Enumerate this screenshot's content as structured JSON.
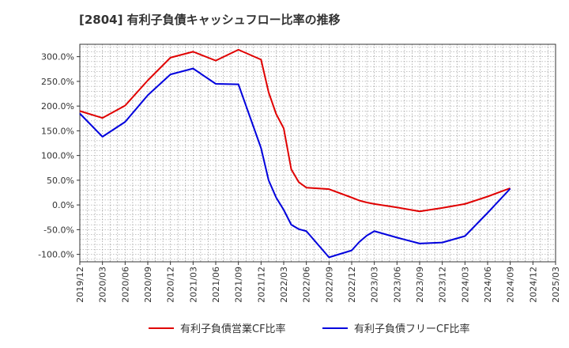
{
  "chart_data": {
    "type": "line",
    "title": "[2804]  有利子負債キャッシュフロー比率の推移",
    "xlabel": "",
    "ylabel": "",
    "x_ticks": [
      "2019/12",
      "2020/03",
      "2020/06",
      "2020/09",
      "2020/12",
      "2021/03",
      "2021/06",
      "2021/09",
      "2021/12",
      "2022/03",
      "2022/06",
      "2022/09",
      "2022/12",
      "2023/03",
      "2023/06",
      "2023/09",
      "2023/12",
      "2024/03",
      "2024/06",
      "2024/09",
      "2024/12",
      "2025/03"
    ],
    "y_ticks": [
      "300.0%",
      "250.0%",
      "200.0%",
      "150.0%",
      "100.0%",
      "50.0%",
      "0.0%",
      "-50.0%",
      "-100.0%"
    ],
    "y_tick_values": [
      300,
      250,
      200,
      150,
      100,
      50,
      0,
      -50,
      -100
    ],
    "ylim": [
      -115,
      325
    ],
    "grid": true,
    "legend_position": "bottom",
    "series": [
      {
        "name": "有利子負債営業CF比率",
        "color": "#e00000",
        "points": [
          [
            "2019/12",
            190
          ],
          [
            "2020/03",
            176
          ],
          [
            "2020/06",
            201
          ],
          [
            "2020/09",
            252
          ],
          [
            "2020/12",
            298
          ],
          [
            "2021/03",
            310
          ],
          [
            "2021/06",
            292
          ],
          [
            "2021/09",
            314
          ],
          [
            "2021/12",
            294
          ],
          [
            "2022/01",
            228
          ],
          [
            "2022/02",
            184
          ],
          [
            "2022/03",
            155
          ],
          [
            "2022/04",
            72
          ],
          [
            "2022/05",
            46
          ],
          [
            "2022/06",
            35
          ],
          [
            "2022/09",
            32
          ],
          [
            "2022/12",
            15
          ],
          [
            "2023/01",
            9
          ],
          [
            "2023/02",
            5
          ],
          [
            "2023/03",
            2
          ],
          [
            "2023/06",
            -5
          ],
          [
            "2023/09",
            -13
          ],
          [
            "2023/12",
            -6
          ],
          [
            "2024/03",
            2
          ],
          [
            "2024/06",
            17
          ],
          [
            "2024/09",
            34
          ]
        ]
      },
      {
        "name": "有利子負債フリーCF比率",
        "color": "#0000dd",
        "points": [
          [
            "2019/12",
            185
          ],
          [
            "2020/03",
            138
          ],
          [
            "2020/06",
            168
          ],
          [
            "2020/09",
            222
          ],
          [
            "2020/12",
            264
          ],
          [
            "2021/03",
            276
          ],
          [
            "2021/06",
            245
          ],
          [
            "2021/09",
            244
          ],
          [
            "2021/12",
            115
          ],
          [
            "2022/01",
            50
          ],
          [
            "2022/02",
            15
          ],
          [
            "2022/03",
            -10
          ],
          [
            "2022/04",
            -40
          ],
          [
            "2022/05",
            -49
          ],
          [
            "2022/06",
            -53
          ],
          [
            "2022/09",
            -106
          ],
          [
            "2022/12",
            -92
          ],
          [
            "2023/01",
            -75
          ],
          [
            "2023/02",
            -62
          ],
          [
            "2023/03",
            -53
          ],
          [
            "2023/06",
            -66
          ],
          [
            "2023/09",
            -78
          ],
          [
            "2023/12",
            -76
          ],
          [
            "2024/03",
            -63
          ],
          [
            "2024/06",
            -16
          ],
          [
            "2024/09",
            33
          ]
        ]
      }
    ]
  }
}
